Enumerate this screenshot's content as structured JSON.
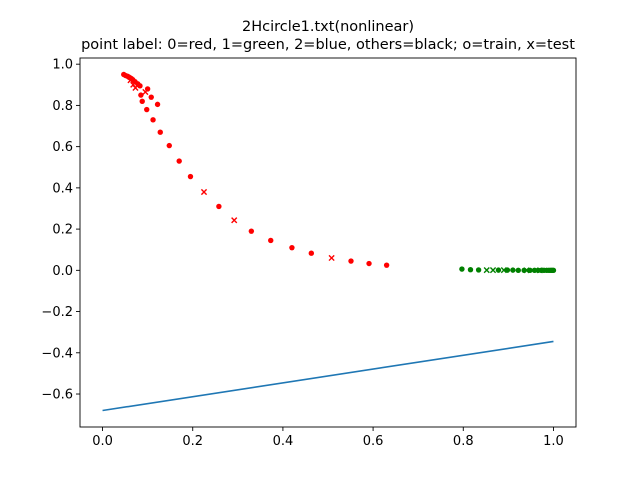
{
  "chart_data": {
    "type": "scatter",
    "title": "2Hcircle1.txt(nonlinear)",
    "subtitle": "point label: 0=red, 1=green, 2=blue, others=black; o=train, x=test",
    "xlabel": "",
    "ylabel": "",
    "xlim": [
      -0.05,
      1.05
    ],
    "ylim": [
      -0.76,
      1.03
    ],
    "xticks": [
      0.0,
      0.2,
      0.4,
      0.6,
      0.8,
      1.0
    ],
    "xtick_labels": [
      "0.0",
      "0.2",
      "0.4",
      "0.6",
      "0.8",
      "1.0"
    ],
    "yticks": [
      -0.6,
      -0.4,
      -0.2,
      0.0,
      0.2,
      0.4,
      0.6,
      0.8,
      1.0
    ],
    "ytick_labels": [
      "−0.6",
      "−0.4",
      "−0.2",
      "0.0",
      "0.2",
      "0.4",
      "0.6",
      "0.8",
      "1.0"
    ],
    "grid": false,
    "series": [
      {
        "label": 0,
        "set": "train",
        "marker": "circle",
        "color": "#ff0000",
        "points": [
          [
            0.047,
            0.95
          ],
          [
            0.051,
            0.945
          ],
          [
            0.055,
            0.942
          ],
          [
            0.058,
            0.938
          ],
          [
            0.061,
            0.934
          ],
          [
            0.064,
            0.93
          ],
          [
            0.067,
            0.925
          ],
          [
            0.072,
            0.915
          ],
          [
            0.078,
            0.905
          ],
          [
            0.083,
            0.895
          ],
          [
            0.085,
            0.85
          ],
          [
            0.1,
            0.88
          ],
          [
            0.108,
            0.84
          ],
          [
            0.088,
            0.82
          ],
          [
            0.122,
            0.805
          ],
          [
            0.098,
            0.78
          ],
          [
            0.112,
            0.73
          ],
          [
            0.128,
            0.67
          ],
          [
            0.148,
            0.605
          ],
          [
            0.17,
            0.53
          ],
          [
            0.195,
            0.455
          ],
          [
            0.258,
            0.31
          ],
          [
            0.33,
            0.19
          ],
          [
            0.373,
            0.145
          ],
          [
            0.42,
            0.11
          ],
          [
            0.463,
            0.083
          ],
          [
            0.551,
            0.045
          ],
          [
            0.591,
            0.033
          ],
          [
            0.63,
            0.025
          ]
        ]
      },
      {
        "label": 0,
        "set": "test",
        "marker": "x",
        "color": "#ff0000",
        "points": [
          [
            0.062,
            0.922
          ],
          [
            0.068,
            0.9
          ],
          [
            0.073,
            0.885
          ],
          [
            0.095,
            0.865
          ],
          [
            0.225,
            0.38
          ],
          [
            0.292,
            0.243
          ],
          [
            0.508,
            0.06
          ]
        ]
      },
      {
        "label": 1,
        "set": "train",
        "marker": "circle",
        "color": "#008000",
        "points": [
          [
            0.797,
            0.006
          ],
          [
            0.816,
            0.003
          ],
          [
            0.834,
            0.002
          ],
          [
            0.878,
            0.001
          ],
          [
            0.898,
            0.001
          ],
          [
            0.91,
            0.001
          ],
          [
            0.922,
            0.0
          ],
          [
            0.935,
            0.0
          ],
          [
            0.948,
            0.0
          ],
          [
            0.958,
            0.0
          ],
          [
            0.966,
            0.0
          ],
          [
            0.973,
            0.0
          ],
          [
            0.979,
            0.0
          ],
          [
            0.985,
            0.0
          ],
          [
            0.99,
            0.0
          ],
          [
            0.994,
            0.0
          ],
          [
            0.997,
            0.0
          ],
          [
            1.0,
            0.0
          ]
        ]
      },
      {
        "label": 1,
        "set": "test",
        "marker": "x",
        "color": "#008000",
        "points": [
          [
            0.852,
            0.001
          ],
          [
            0.866,
            0.001
          ],
          [
            0.89,
            0.001
          ],
          [
            0.94,
            0.0
          ],
          [
            0.97,
            0.0
          ]
        ]
      }
    ],
    "lines": [
      {
        "color": "#1f77b4",
        "points": [
          [
            0.0,
            -0.68
          ],
          [
            1.0,
            -0.345
          ]
        ]
      }
    ]
  }
}
